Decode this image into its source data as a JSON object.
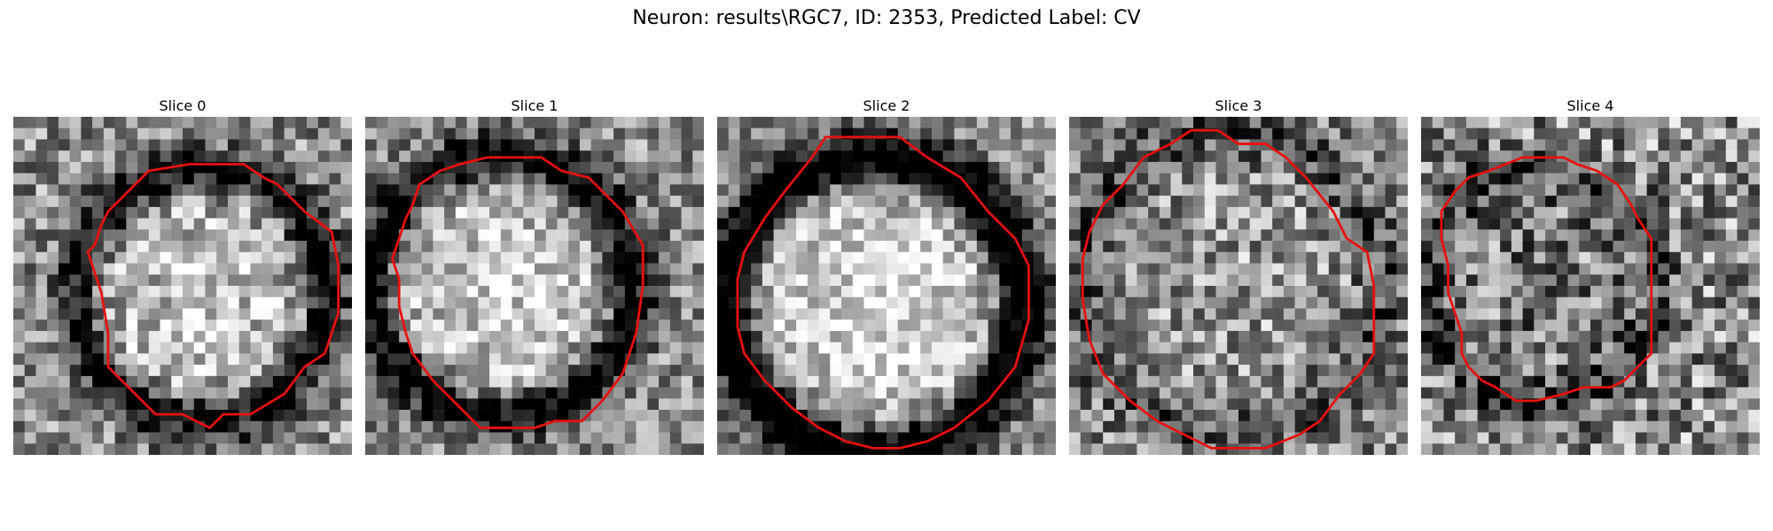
{
  "title": "Neuron: results\\RGC7, ID: 2353, Predicted Label: CV",
  "panels": [
    {
      "label": "Slice 0",
      "seed": 11,
      "contrast": 0.65,
      "ring_dark": 0.55,
      "center_bright": 0.25,
      "contour": [
        [
          26,
          7
        ],
        [
          34,
          7
        ],
        [
          37,
          9
        ],
        [
          39,
          10
        ],
        [
          43,
          14
        ],
        [
          47,
          17
        ],
        [
          48,
          22
        ],
        [
          48,
          29
        ],
        [
          46,
          35
        ],
        [
          43,
          37
        ],
        [
          40,
          41
        ],
        [
          35,
          44
        ],
        [
          31,
          44
        ],
        [
          29,
          46
        ],
        [
          27,
          45
        ],
        [
          25,
          44
        ],
        [
          21,
          44
        ],
        [
          18,
          41
        ],
        [
          14,
          37
        ],
        [
          14,
          32
        ],
        [
          13,
          26
        ],
        [
          12,
          23
        ],
        [
          11,
          20
        ],
        [
          12,
          19
        ],
        [
          13,
          16
        ],
        [
          14,
          14
        ],
        [
          17,
          11
        ],
        [
          20,
          8
        ]
      ]
    },
    {
      "label": "Slice 1",
      "seed": 23,
      "contrast": 0.6,
      "ring_dark": 0.6,
      "center_bright": 0.3,
      "contour": [
        [
          20,
          6
        ],
        [
          26,
          6
        ],
        [
          29,
          8
        ],
        [
          33,
          9
        ],
        [
          38,
          14
        ],
        [
          41,
          19
        ],
        [
          41,
          25
        ],
        [
          40,
          32
        ],
        [
          38,
          38
        ],
        [
          35,
          42
        ],
        [
          32,
          45
        ],
        [
          28,
          45
        ],
        [
          25,
          46
        ],
        [
          21,
          46
        ],
        [
          17,
          46
        ],
        [
          13,
          42
        ],
        [
          10,
          39
        ],
        [
          7,
          35
        ],
        [
          6,
          32
        ],
        [
          5,
          28
        ],
        [
          5,
          24
        ],
        [
          4,
          21
        ],
        [
          5,
          18
        ],
        [
          6,
          15
        ],
        [
          7,
          13
        ],
        [
          8,
          10
        ],
        [
          11,
          8
        ],
        [
          14,
          7
        ],
        [
          18,
          6
        ]
      ]
    },
    {
      "label": "Slice 2",
      "seed": 37,
      "contrast": 0.55,
      "ring_dark": 0.75,
      "center_bright": 0.35,
      "contour": [
        [
          16,
          3
        ],
        [
          27,
          3
        ],
        [
          31,
          6
        ],
        [
          36,
          9
        ],
        [
          40,
          14
        ],
        [
          44,
          18
        ],
        [
          46,
          22
        ],
        [
          46,
          30
        ],
        [
          44,
          37
        ],
        [
          40,
          42
        ],
        [
          35,
          46
        ],
        [
          31,
          48
        ],
        [
          27,
          49
        ],
        [
          23,
          49
        ],
        [
          19,
          48
        ],
        [
          15,
          46
        ],
        [
          11,
          43
        ],
        [
          7,
          39
        ],
        [
          4,
          35
        ],
        [
          3,
          31
        ],
        [
          3,
          24
        ],
        [
          4,
          20
        ],
        [
          7,
          15
        ],
        [
          10,
          11
        ],
        [
          14,
          6
        ]
      ]
    },
    {
      "label": "Slice 3",
      "seed": 53,
      "contrast": 0.7,
      "ring_dark": 0.25,
      "center_bright": 0.05,
      "contour": [
        [
          18,
          2
        ],
        [
          22,
          2
        ],
        [
          25,
          4
        ],
        [
          29,
          4
        ],
        [
          32,
          6
        ],
        [
          35,
          9
        ],
        [
          39,
          14
        ],
        [
          41,
          18
        ],
        [
          44,
          20
        ],
        [
          45,
          25
        ],
        [
          45,
          30
        ],
        [
          45,
          35
        ],
        [
          43,
          38
        ],
        [
          40,
          41
        ],
        [
          37,
          45
        ],
        [
          34,
          47
        ],
        [
          29,
          49
        ],
        [
          21,
          49
        ],
        [
          17,
          47
        ],
        [
          13,
          45
        ],
        [
          9,
          42
        ],
        [
          5,
          38
        ],
        [
          3,
          33
        ],
        [
          2,
          27
        ],
        [
          2,
          21
        ],
        [
          3,
          17
        ],
        [
          5,
          13
        ],
        [
          8,
          10
        ],
        [
          11,
          6
        ],
        [
          15,
          4
        ]
      ]
    },
    {
      "label": "Slice 4",
      "seed": 71,
      "contrast": 0.8,
      "ring_dark": 0.35,
      "center_bright": -0.1,
      "contour": [
        [
          15,
          6
        ],
        [
          21,
          6
        ],
        [
          23,
          7
        ],
        [
          26,
          8
        ],
        [
          29,
          10
        ],
        [
          31,
          13
        ],
        [
          32,
          15
        ],
        [
          34,
          18
        ],
        [
          34,
          27
        ],
        [
          34,
          35
        ],
        [
          32,
          37
        ],
        [
          30,
          39
        ],
        [
          28,
          40
        ],
        [
          24,
          40
        ],
        [
          21,
          41
        ],
        [
          17,
          42
        ],
        [
          14,
          42
        ],
        [
          11,
          40
        ],
        [
          9,
          39
        ],
        [
          7,
          37
        ],
        [
          6,
          35
        ],
        [
          6,
          32
        ],
        [
          5,
          29
        ],
        [
          4,
          26
        ],
        [
          4,
          22
        ],
        [
          3,
          18
        ],
        [
          3,
          14
        ],
        [
          5,
          11
        ],
        [
          7,
          9
        ],
        [
          10,
          8
        ]
      ]
    }
  ]
}
